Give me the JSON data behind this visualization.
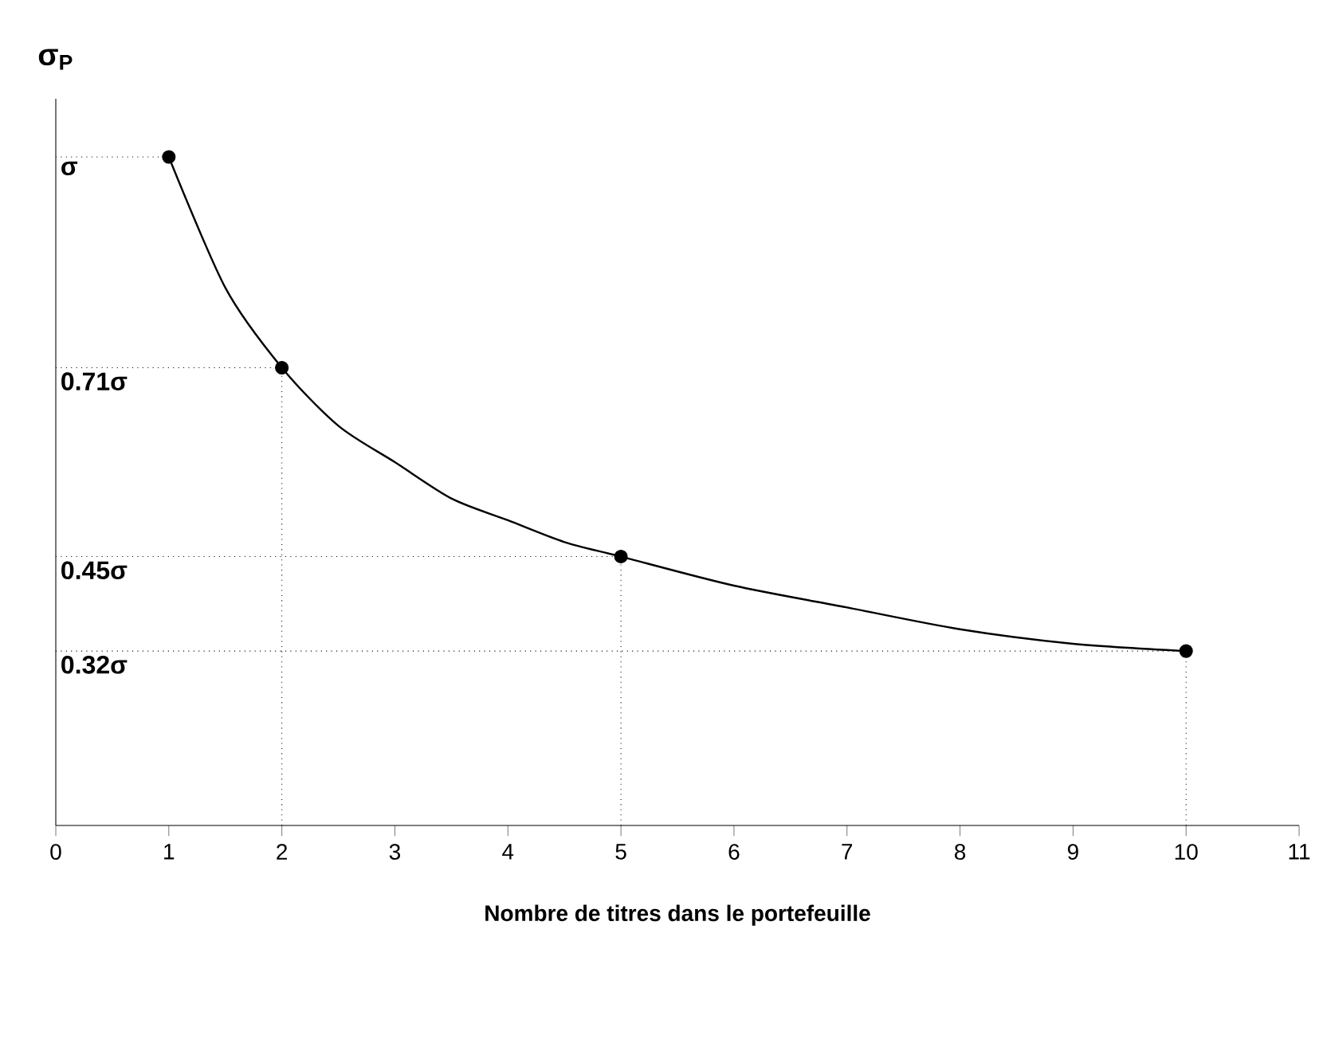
{
  "chart_data": {
    "type": "line",
    "xlabel": "Nombre de titres dans le portefeuille",
    "ylabel": "σ$_{P}$",
    "xlim": [
      0,
      11
    ],
    "xticks": [
      0,
      1,
      2,
      3,
      4,
      5,
      6,
      7,
      8,
      9,
      10,
      11
    ],
    "ylim": [
      0.08,
      1.08
    ],
    "tick_labels": "x",
    "grid": false,
    "series": [
      {
        "color": "#000000",
        "line_style": "solid",
        "marker": "none",
        "x": [
          1,
          1.5,
          2,
          2.5,
          3,
          3.5,
          4,
          4.5,
          5,
          6,
          7,
          8,
          9,
          10
        ],
        "values": [
          1,
          0.82,
          0.71,
          0.63,
          0.58,
          0.53,
          0.5,
          0.47,
          0.45,
          0.41,
          0.38,
          0.35,
          0.33,
          0.32
        ]
      },
      {
        "type": "scatter",
        "color": "#000000",
        "marker": "circle",
        "x": [
          1,
          2,
          5,
          10
        ],
        "values": [
          1,
          0.71,
          0.45,
          0.32
        ]
      }
    ],
    "ref_lines": [
      {
        "axis": "y",
        "value": 1,
        "label": "σ",
        "line_style": "dotted"
      },
      {
        "axis": "y",
        "value": 0.71,
        "label": "0.71σ",
        "line_style": "dotted"
      },
      {
        "axis": "y",
        "value": 0.45,
        "label": "0.45σ",
        "line_style": "dotted"
      },
      {
        "axis": "y",
        "value": 0.32,
        "label": "0.32σ",
        "line_style": "dotted"
      },
      {
        "axis": "x",
        "value": 2,
        "line_style": "dotted"
      },
      {
        "axis": "x",
        "value": 5,
        "line_style": "dotted"
      },
      {
        "axis": "x",
        "value": 10,
        "line_style": "dotted"
      }
    ]
  }
}
